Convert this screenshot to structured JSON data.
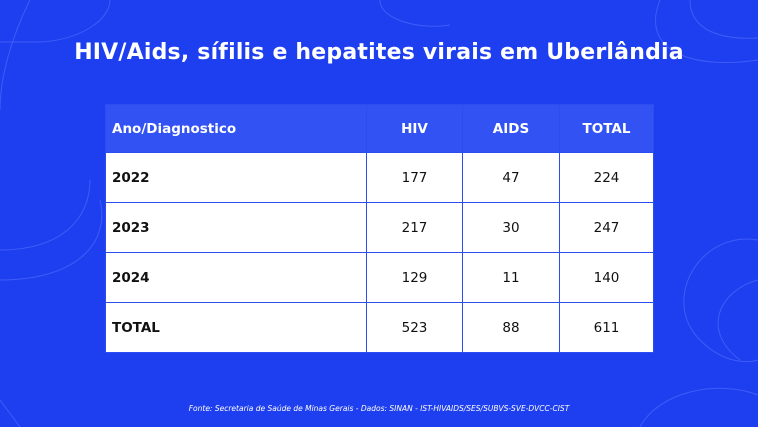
{
  "title": "HIV/Aids, sífilis e hepatites virais em Uberlândia",
  "table": {
    "headers": [
      "Ano/Diagnostico",
      "HIV",
      "AIDS",
      "TOTAL"
    ],
    "rows": [
      [
        "2022",
        "177",
        "47",
        "224"
      ],
      [
        "2023",
        "217",
        "30",
        "247"
      ],
      [
        "2024",
        "129",
        "11",
        "140"
      ],
      [
        "TOTAL",
        "523",
        "88",
        "611"
      ]
    ]
  },
  "source": "Fonte: Secretaria de Saúde de Minas Gerais - Dados: SINAN - IST-HIVAIDS/SES/SUBVS-SVE-DVCC-CIST",
  "colors": {
    "background": "#1e3ff0",
    "header_fill": "#3352f4",
    "table_border": "#2a4ef2",
    "text_light": "#ffffff"
  }
}
